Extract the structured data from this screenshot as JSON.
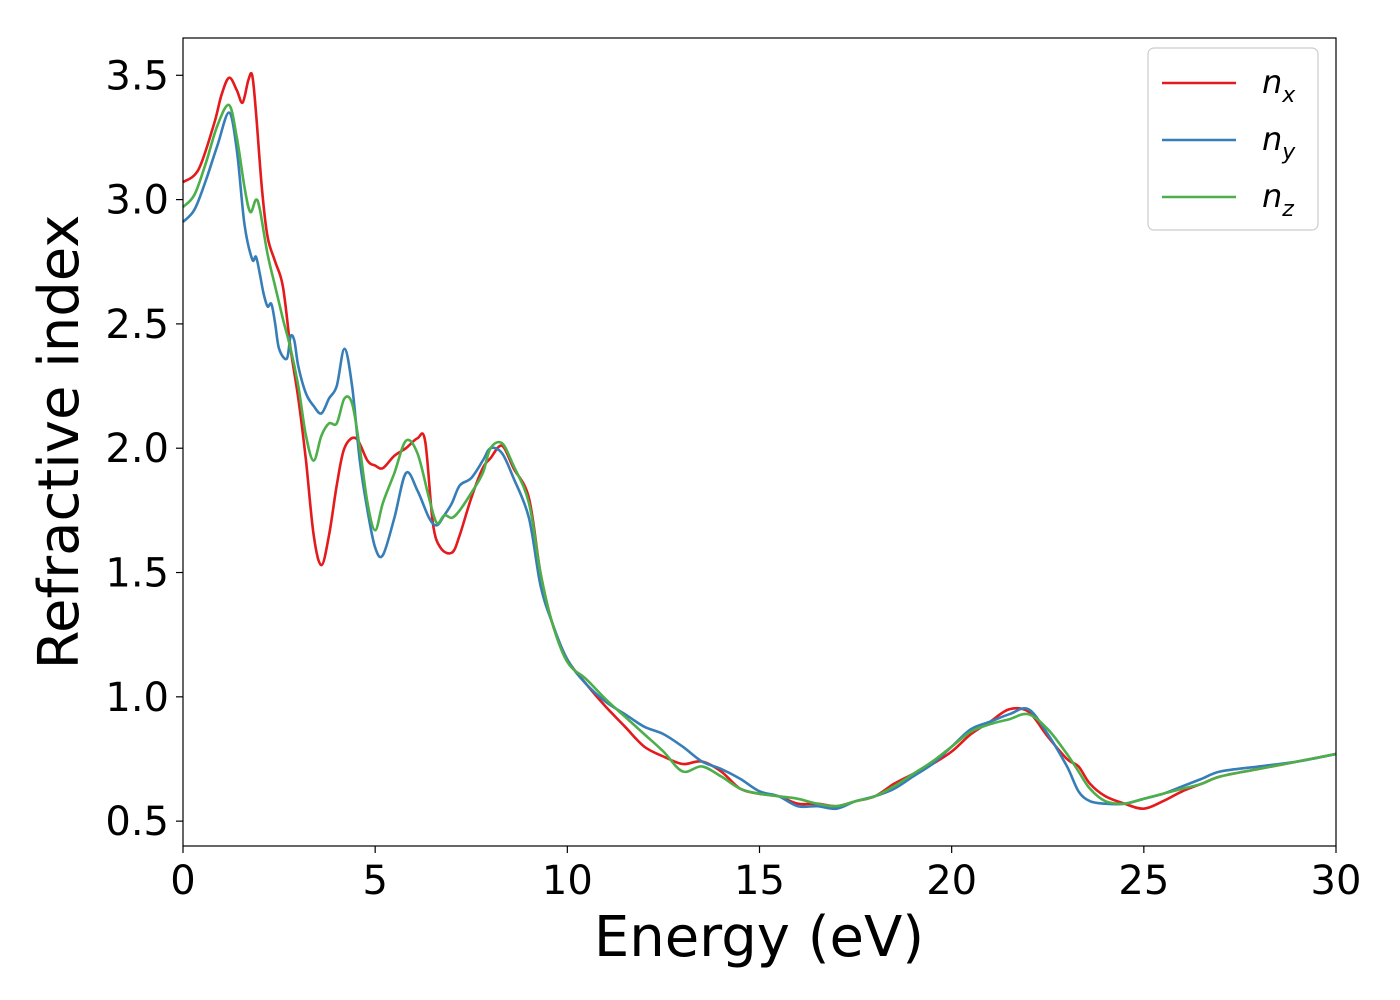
{
  "chart_data": {
    "type": "line",
    "title": "",
    "xlabel": "Energy (eV)",
    "ylabel": "Refractive index",
    "xlim": [
      0,
      30
    ],
    "ylim": [
      0.4,
      3.65
    ],
    "xticks": [
      0,
      5,
      10,
      15,
      20,
      25,
      30
    ],
    "xtick_labels": [
      "0",
      "5",
      "10",
      "15",
      "20",
      "25",
      "30"
    ],
    "yticks": [
      0.5,
      1.0,
      1.5,
      2.0,
      2.5,
      3.0,
      3.5
    ],
    "ytick_labels": [
      "0.5",
      "1.0",
      "1.5",
      "2.0",
      "2.5",
      "3.0",
      "3.5"
    ],
    "grid": false,
    "legend_position": "top-right",
    "series": [
      {
        "name": "n_x",
        "legend_main": "n",
        "legend_sub": "x",
        "color": "#e41a1c",
        "x": [
          0,
          0.4,
          0.8,
          1.0,
          1.2,
          1.4,
          1.55,
          1.7,
          1.8,
          1.9,
          2.05,
          2.2,
          2.4,
          2.6,
          2.8,
          3.0,
          3.2,
          3.4,
          3.6,
          3.8,
          4.0,
          4.2,
          4.5,
          4.8,
          5.0,
          5.2,
          5.5,
          5.8,
          6.1,
          6.3,
          6.5,
          6.7,
          7.0,
          7.2,
          7.5,
          7.8,
          8.0,
          8.3,
          8.6,
          9.0,
          9.3,
          9.6,
          10.0,
          10.5,
          11.0,
          11.5,
          12.0,
          12.5,
          13.0,
          13.5,
          14.0,
          14.5,
          15.0,
          15.5,
          16.0,
          16.5,
          17.0,
          17.5,
          18.0,
          18.5,
          19.0,
          19.5,
          20.0,
          20.5,
          21.0,
          21.5,
          22.0,
          22.5,
          23.0,
          23.3,
          23.6,
          24.0,
          24.5,
          25.0,
          25.5,
          26.0,
          26.5,
          27.0,
          28.0,
          29.0,
          30.0
        ],
        "y": [
          3.07,
          3.12,
          3.3,
          3.42,
          3.49,
          3.44,
          3.39,
          3.48,
          3.5,
          3.35,
          3.05,
          2.85,
          2.75,
          2.65,
          2.4,
          2.2,
          1.95,
          1.65,
          1.53,
          1.65,
          1.85,
          2.0,
          2.04,
          1.95,
          1.93,
          1.92,
          1.97,
          2.0,
          2.04,
          2.03,
          1.7,
          1.6,
          1.58,
          1.65,
          1.8,
          1.92,
          1.96,
          2.01,
          1.92,
          1.8,
          1.5,
          1.3,
          1.15,
          1.05,
          0.96,
          0.88,
          0.8,
          0.76,
          0.73,
          0.74,
          0.7,
          0.63,
          0.61,
          0.6,
          0.57,
          0.57,
          0.56,
          0.58,
          0.6,
          0.65,
          0.69,
          0.73,
          0.78,
          0.85,
          0.9,
          0.95,
          0.94,
          0.84,
          0.75,
          0.72,
          0.65,
          0.6,
          0.57,
          0.55,
          0.58,
          0.62,
          0.65,
          0.68,
          0.71,
          0.74,
          0.77
        ]
      },
      {
        "name": "n_y",
        "legend_main": "n",
        "legend_sub": "y",
        "color": "#377eb8",
        "x": [
          0,
          0.3,
          0.6,
          0.9,
          1.2,
          1.4,
          1.6,
          1.8,
          1.9,
          2.0,
          2.1,
          2.2,
          2.3,
          2.4,
          2.5,
          2.7,
          2.8,
          2.9,
          3.0,
          3.2,
          3.4,
          3.6,
          3.8,
          4.0,
          4.2,
          4.4,
          4.6,
          4.8,
          5.0,
          5.2,
          5.5,
          5.8,
          6.1,
          6.4,
          6.6,
          6.8,
          7.0,
          7.2,
          7.5,
          7.8,
          8.0,
          8.3,
          8.6,
          9.0,
          9.3,
          9.6,
          10.0,
          10.5,
          11.0,
          11.5,
          12.0,
          12.5,
          13.0,
          13.5,
          14.0,
          14.5,
          15.0,
          15.5,
          16.0,
          16.5,
          17.0,
          17.5,
          18.0,
          18.5,
          19.0,
          19.5,
          20.0,
          20.5,
          21.0,
          21.5,
          22.0,
          22.5,
          23.0,
          23.3,
          23.6,
          24.0,
          24.5,
          25.0,
          25.5,
          26.0,
          26.5,
          27.0,
          28.0,
          29.0,
          30.0
        ],
        "y": [
          2.91,
          2.96,
          3.08,
          3.22,
          3.35,
          3.2,
          2.9,
          2.76,
          2.77,
          2.7,
          2.62,
          2.57,
          2.58,
          2.5,
          2.4,
          2.36,
          2.45,
          2.43,
          2.33,
          2.22,
          2.17,
          2.14,
          2.2,
          2.25,
          2.4,
          2.25,
          1.95,
          1.75,
          1.6,
          1.57,
          1.72,
          1.9,
          1.83,
          1.72,
          1.69,
          1.73,
          1.78,
          1.85,
          1.88,
          1.95,
          2.0,
          1.98,
          1.88,
          1.72,
          1.45,
          1.3,
          1.15,
          1.05,
          0.98,
          0.93,
          0.88,
          0.85,
          0.8,
          0.74,
          0.71,
          0.67,
          0.62,
          0.6,
          0.56,
          0.56,
          0.55,
          0.58,
          0.6,
          0.63,
          0.68,
          0.73,
          0.8,
          0.87,
          0.9,
          0.93,
          0.95,
          0.85,
          0.72,
          0.62,
          0.58,
          0.57,
          0.57,
          0.59,
          0.61,
          0.64,
          0.67,
          0.7,
          0.72,
          0.74,
          0.77
        ]
      },
      {
        "name": "n_z",
        "legend_main": "n",
        "legend_sub": "z",
        "color": "#4daf4a",
        "x": [
          0,
          0.3,
          0.6,
          0.9,
          1.2,
          1.4,
          1.6,
          1.75,
          1.9,
          2.0,
          2.2,
          2.4,
          2.6,
          2.8,
          3.0,
          3.2,
          3.4,
          3.6,
          3.8,
          4.0,
          4.2,
          4.4,
          4.6,
          4.8,
          5.0,
          5.2,
          5.5,
          5.8,
          6.1,
          6.4,
          6.6,
          6.8,
          7.0,
          7.2,
          7.5,
          7.8,
          8.0,
          8.3,
          8.6,
          9.0,
          9.3,
          9.6,
          10.0,
          10.5,
          11.0,
          11.5,
          12.0,
          12.5,
          13.0,
          13.5,
          14.0,
          14.5,
          15.0,
          15.5,
          16.0,
          16.5,
          17.0,
          17.5,
          18.0,
          18.5,
          19.0,
          19.5,
          20.0,
          20.5,
          21.0,
          21.5,
          22.0,
          22.5,
          23.0,
          23.3,
          23.6,
          24.0,
          24.5,
          25.0,
          25.5,
          26.0,
          26.5,
          27.0,
          28.0,
          29.0,
          30.0
        ],
        "y": [
          2.97,
          3.02,
          3.15,
          3.3,
          3.38,
          3.25,
          3.05,
          2.95,
          3.0,
          2.96,
          2.78,
          2.65,
          2.52,
          2.4,
          2.25,
          2.05,
          1.95,
          2.05,
          2.1,
          2.1,
          2.2,
          2.18,
          2.0,
          1.78,
          1.67,
          1.78,
          1.9,
          2.03,
          1.98,
          1.8,
          1.7,
          1.73,
          1.72,
          1.75,
          1.82,
          1.9,
          2.0,
          2.02,
          1.93,
          1.78,
          1.5,
          1.3,
          1.14,
          1.07,
          0.99,
          0.92,
          0.85,
          0.78,
          0.7,
          0.72,
          0.68,
          0.63,
          0.61,
          0.6,
          0.59,
          0.57,
          0.56,
          0.58,
          0.6,
          0.64,
          0.69,
          0.74,
          0.8,
          0.86,
          0.89,
          0.91,
          0.93,
          0.87,
          0.77,
          0.7,
          0.63,
          0.58,
          0.57,
          0.59,
          0.61,
          0.63,
          0.65,
          0.68,
          0.71,
          0.74,
          0.77
        ]
      }
    ]
  }
}
